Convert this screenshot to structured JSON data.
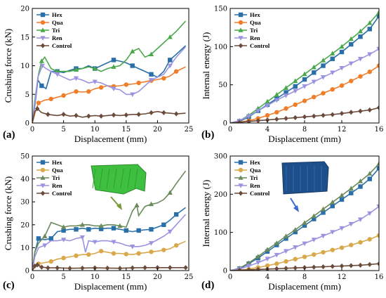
{
  "figure": {
    "legend_names": [
      "Hex",
      "Qua",
      "Tri",
      "Ren",
      "Control"
    ],
    "colors": {
      "Hex": "#2a6fa8",
      "Qua": "#f07d2a",
      "Qua_c": "#d8a84a",
      "Tri": "#4aa84a",
      "Tri_c": "#6a8a5a",
      "Ren": "#9a94e0",
      "Control": "#6a4a3a"
    }
  },
  "chart_data": [
    {
      "id": "a",
      "panel_label": "(a)",
      "type": "line",
      "xlabel": "Displacement (mm)",
      "ylabel": "Crushing force (kN)",
      "xlim": [
        0,
        25
      ],
      "ylim": [
        0,
        20
      ],
      "xticks": [
        0,
        5,
        10,
        15,
        20,
        25
      ],
      "yticks": [
        0,
        5,
        10,
        15,
        20
      ],
      "legend_position": "top-left",
      "series": [
        {
          "name": "Hex",
          "color": "Hex",
          "marker": "square",
          "x": [
            0,
            0.4,
            0.9,
            1.5,
            2.2,
            3,
            4,
            5,
            6,
            7,
            8,
            9,
            10,
            11,
            12,
            13,
            14,
            15,
            16,
            17,
            18,
            19,
            20,
            21,
            22,
            23,
            24.5
          ],
          "y": [
            0,
            3,
            7.5,
            6.5,
            6,
            9,
            9,
            8.8,
            9.2,
            9.5,
            9.5,
            10,
            9.5,
            10,
            10.5,
            11,
            10.8,
            10.5,
            10,
            9.5,
            9,
            8.5,
            8,
            9,
            11,
            12,
            13.5
          ]
        },
        {
          "name": "Qua",
          "color": "Qua",
          "marker": "circle",
          "x": [
            0,
            0.5,
            1,
            2,
            3,
            4,
            5,
            6,
            7,
            8,
            9,
            10,
            11,
            12,
            13,
            14,
            15,
            16,
            17,
            18,
            19,
            20,
            21,
            22,
            23,
            24.5
          ],
          "y": [
            0,
            2,
            3.5,
            4,
            4.2,
            4.5,
            4.8,
            5.2,
            5.5,
            5.4,
            5.5,
            6,
            6.2,
            6.5,
            6.4,
            6.5,
            6.7,
            6.8,
            7,
            7.2,
            7.4,
            7.6,
            7.8,
            8.2,
            9,
            9.8
          ]
        },
        {
          "name": "Tri",
          "color": "Tri",
          "marker": "triangle",
          "x": [
            0,
            0.4,
            1,
            1.5,
            2,
            3,
            4,
            5,
            6,
            7,
            8,
            9,
            10,
            11,
            12,
            13,
            14,
            15,
            16,
            17,
            18,
            19,
            20,
            21,
            22,
            23,
            24.5
          ],
          "y": [
            0,
            4,
            8.5,
            10.8,
            11.5,
            9.5,
            9,
            9,
            9,
            9.3,
            9.5,
            9.8,
            9.5,
            9,
            9.5,
            9.8,
            10,
            11,
            12.5,
            13,
            11.5,
            12,
            13,
            14,
            15,
            16,
            17.8
          ]
        },
        {
          "name": "Ren",
          "color": "Ren",
          "marker": "tri-down",
          "x": [
            0,
            0.4,
            0.9,
            1.6,
            2.2,
            3,
            4,
            5,
            6,
            7,
            8,
            9,
            10,
            11,
            12,
            13,
            14,
            15,
            16,
            17,
            18,
            19,
            20,
            21,
            22,
            23,
            24.5
          ],
          "y": [
            0,
            3.5,
            8,
            10,
            9.5,
            9,
            8.5,
            8,
            7.5,
            7.8,
            7.5,
            7,
            7.2,
            7,
            6.5,
            6,
            5.8,
            5,
            5,
            5.5,
            6.5,
            7.5,
            8,
            8.5,
            10,
            11.5,
            13.3
          ]
        },
        {
          "name": "Control",
          "color": "Control",
          "marker": "diamond",
          "x": [
            0,
            0.4,
            0.8,
            1.5,
            2.5,
            4,
            5,
            6,
            7,
            8,
            9,
            10,
            11,
            12,
            13,
            14,
            15,
            16,
            17,
            18,
            19,
            20,
            21,
            22,
            23,
            24.5
          ],
          "y": [
            0,
            2,
            2.5,
            1.8,
            1.5,
            1.3,
            1.5,
            1.2,
            1.3,
            1.0,
            1.2,
            1.3,
            1.2,
            1.3,
            1.4,
            1.3,
            1.4,
            1.5,
            1.5,
            1.6,
            1.8,
            2.0,
            1.8,
            1.7,
            1.6,
            1.7
          ]
        }
      ]
    },
    {
      "id": "b",
      "panel_label": "(b)",
      "type": "line",
      "xlabel": "Displacement (mm)",
      "ylabel": "Internal energy (J)",
      "xlim": [
        0,
        16
      ],
      "ylim": [
        0,
        150
      ],
      "xticks": [
        0,
        4,
        8,
        12,
        16
      ],
      "yticks": [
        0,
        50,
        100,
        150
      ],
      "legend_position": "top-left",
      "series": [
        {
          "name": "Hex",
          "color": "Hex",
          "marker": "square",
          "x": [
            0,
            1,
            2,
            3,
            4,
            5,
            6,
            7,
            8,
            9,
            10,
            11,
            12,
            13,
            14,
            15,
            16
          ],
          "y": [
            0,
            2,
            8,
            16,
            24,
            32,
            40,
            48,
            57,
            66,
            75,
            84,
            93,
            103,
            113,
            123,
            140
          ]
        },
        {
          "name": "Qua",
          "color": "Qua",
          "marker": "circle",
          "x": [
            0,
            1,
            2,
            3,
            4,
            5,
            6,
            7,
            8,
            9,
            10,
            11,
            12,
            13,
            14,
            15,
            16
          ],
          "y": [
            0,
            1,
            3,
            6,
            10,
            14,
            19,
            24,
            29,
            34,
            39,
            44,
            49,
            55,
            61,
            67,
            75
          ]
        },
        {
          "name": "Tri",
          "color": "Tri",
          "marker": "triangle",
          "x": [
            0,
            1,
            2,
            3,
            4,
            5,
            6,
            7,
            8,
            9,
            10,
            11,
            12,
            13,
            14,
            15,
            16
          ],
          "y": [
            0,
            3,
            10,
            19,
            28,
            37,
            46,
            55,
            64,
            73,
            82,
            91,
            100,
            110,
            120,
            131,
            145
          ]
        },
        {
          "name": "Ren",
          "color": "Ren",
          "marker": "tri-down",
          "x": [
            0,
            1,
            2,
            3,
            4,
            5,
            6,
            7,
            8,
            9,
            10,
            11,
            12,
            13,
            14,
            15,
            16
          ],
          "y": [
            0,
            3,
            9,
            16,
            23,
            30,
            36,
            42,
            48,
            54,
            60,
            66,
            72,
            78,
            84,
            90,
            97
          ]
        },
        {
          "name": "Control",
          "color": "Control",
          "marker": "diamond",
          "x": [
            0,
            1,
            2,
            3,
            4,
            5,
            6,
            7,
            8,
            9,
            10,
            11,
            12,
            13,
            14,
            15,
            16
          ],
          "y": [
            0,
            1,
            2,
            3,
            4,
            5,
            6,
            7,
            8,
            9,
            10,
            11,
            12.5,
            14,
            15.5,
            17,
            20
          ]
        }
      ]
    },
    {
      "id": "c",
      "panel_label": "(c)",
      "type": "line",
      "xlabel": "Displacement (mm)",
      "ylabel": "Crushing force (kN)",
      "xlim": [
        0,
        25
      ],
      "ylim": [
        0,
        50
      ],
      "xticks": [
        0,
        5,
        10,
        15,
        20,
        25
      ],
      "yticks": [
        0,
        10,
        20,
        30,
        40,
        50
      ],
      "legend_position": "top-left",
      "series": [
        {
          "name": "Hex",
          "color": "Hex",
          "marker": "square",
          "x": [
            0,
            0.4,
            1,
            2,
            3,
            4,
            5,
            6,
            7,
            8,
            9,
            10,
            11,
            12,
            13,
            14,
            15,
            16,
            17,
            18,
            19,
            20,
            21,
            22,
            23,
            24.5
          ],
          "y": [
            0,
            8,
            14,
            13.5,
            14,
            17,
            17.5,
            18,
            18,
            18.5,
            18,
            18.5,
            18.2,
            18.5,
            18.5,
            18,
            17.5,
            17,
            17.5,
            17.8,
            18,
            19,
            20,
            22,
            24.5,
            27.5
          ]
        },
        {
          "name": "Qua",
          "color": "Qua_c",
          "marker": "circle",
          "x": [
            0,
            0.5,
            1,
            2,
            3,
            4,
            5,
            6,
            7,
            8,
            9,
            10,
            11,
            12,
            13,
            14,
            15,
            16,
            17,
            18,
            19,
            20,
            21,
            22,
            23,
            24.5
          ],
          "y": [
            0,
            2,
            3,
            3.5,
            4,
            5,
            5.5,
            6,
            6.5,
            7,
            7,
            7.5,
            8.5,
            8,
            7.5,
            7.5,
            7.2,
            7,
            7.5,
            7.8,
            8.2,
            8.5,
            9,
            9.5,
            11,
            12.8
          ]
        },
        {
          "name": "Tri",
          "color": "Tri_c",
          "marker": "triangle",
          "x": [
            0,
            0.4,
            1,
            2,
            3,
            4,
            5,
            6,
            7,
            8,
            9,
            10,
            11,
            12,
            13,
            14,
            15,
            16,
            16.7,
            17,
            18,
            19,
            20,
            21,
            22,
            23,
            24.5
          ],
          "y": [
            0,
            8,
            12,
            15,
            21,
            20,
            19,
            19.5,
            19.5,
            20,
            20,
            19.5,
            19.5,
            20,
            20,
            19.5,
            19,
            26,
            28.5,
            24,
            28,
            29,
            29.5,
            31,
            34,
            38,
            43.5
          ]
        },
        {
          "name": "Ren",
          "color": "Ren",
          "marker": "tri-down",
          "x": [
            0,
            0.4,
            1,
            2,
            3,
            4,
            5,
            6,
            7,
            8,
            8.5,
            9,
            10,
            11,
            12,
            13,
            14,
            15,
            16,
            17,
            18,
            19,
            20,
            21,
            22,
            23,
            24.5
          ],
          "y": [
            0,
            6,
            10,
            11,
            13,
            13,
            13.5,
            13,
            14,
            14.5,
            8,
            13,
            12.5,
            13,
            13,
            12.5,
            12,
            11,
            10.5,
            10.5,
            11,
            12,
            13.5,
            15,
            17,
            20,
            24.5
          ]
        },
        {
          "name": "Control",
          "color": "Control",
          "marker": "diamond",
          "x": [
            0,
            0.4,
            0.8,
            1.5,
            2.5,
            4,
            6,
            8,
            10,
            12,
            14,
            16,
            18,
            20,
            22,
            24.5
          ],
          "y": [
            0,
            2,
            2.5,
            1.5,
            1.2,
            1.2,
            1.0,
            1.1,
            1.2,
            1.1,
            1.0,
            1.2,
            1.3,
            1.3,
            1.3,
            1.3
          ]
        }
      ]
    },
    {
      "id": "d",
      "panel_label": "(d)",
      "type": "line",
      "xlabel": "Displacement (mm)",
      "ylabel": "Internal energy (J)",
      "xlim": [
        0,
        16
      ],
      "ylim": [
        0,
        300
      ],
      "xticks": [
        0,
        4,
        8,
        12,
        16
      ],
      "yticks": [
        0,
        100,
        200,
        300
      ],
      "legend_position": "top-left",
      "series": [
        {
          "name": "Hex",
          "color": "Hex",
          "marker": "square",
          "x": [
            0,
            1,
            2,
            3,
            4,
            5,
            6,
            7,
            8,
            9,
            10,
            11,
            12,
            13,
            14,
            15,
            16
          ],
          "y": [
            0,
            5,
            18,
            33,
            50,
            67,
            84,
            101,
            118,
            135,
            152,
            169,
            186,
            203,
            220,
            240,
            268
          ]
        },
        {
          "name": "Qua",
          "color": "Qua_c",
          "marker": "circle",
          "x": [
            0,
            1,
            2,
            3,
            4,
            5,
            6,
            7,
            8,
            9,
            10,
            11,
            12,
            13,
            14,
            15,
            16
          ],
          "y": [
            0,
            1,
            4,
            8,
            13,
            18,
            24,
            30,
            36,
            42,
            48,
            54,
            60,
            67,
            74,
            82,
            92
          ]
        },
        {
          "name": "Tri",
          "color": "Tri_c",
          "marker": "triangle",
          "x": [
            0,
            1,
            2,
            3,
            4,
            5,
            6,
            7,
            8,
            9,
            10,
            11,
            12,
            13,
            14,
            15,
            16
          ],
          "y": [
            0,
            6,
            20,
            37,
            55,
            72,
            90,
            107,
            125,
            143,
            161,
            179,
            197,
            215,
            234,
            254,
            280
          ]
        },
        {
          "name": "Ren",
          "color": "Ren",
          "marker": "tri-down",
          "x": [
            0,
            1,
            2,
            3,
            4,
            5,
            6,
            7,
            8,
            9,
            10,
            11,
            12,
            13,
            14,
            15,
            16
          ],
          "y": [
            0,
            4,
            12,
            21,
            31,
            41,
            51,
            61,
            71,
            81,
            91,
            101,
            111,
            122,
            134,
            150,
            168
          ]
        },
        {
          "name": "Control",
          "color": "Control",
          "marker": "diamond",
          "x": [
            0,
            1,
            2,
            3,
            4,
            5,
            6,
            7,
            8,
            9,
            10,
            11,
            12,
            13,
            14,
            15,
            16
          ],
          "y": [
            0,
            1,
            2,
            3,
            4,
            5,
            6,
            7,
            8,
            9,
            10,
            11,
            12,
            13,
            14,
            16,
            18
          ]
        }
      ]
    }
  ]
}
